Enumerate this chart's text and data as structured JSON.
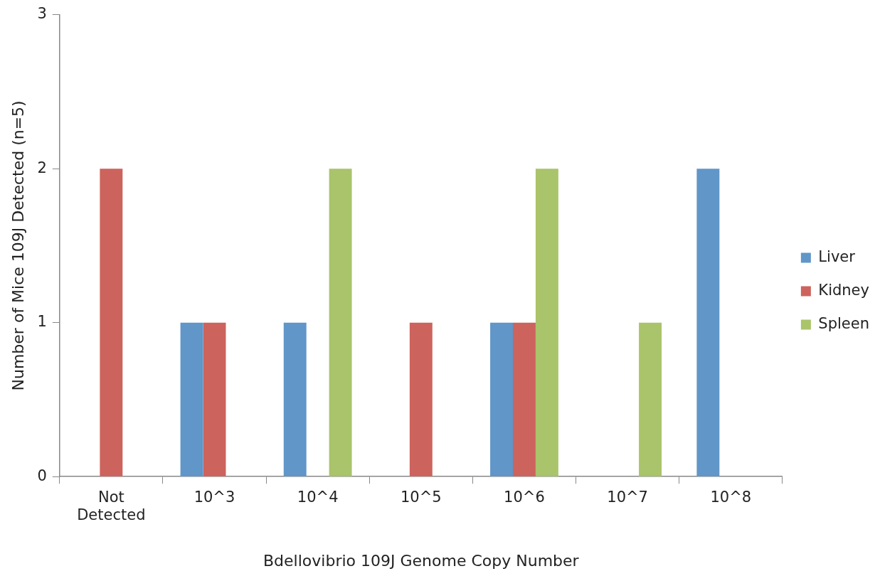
{
  "chart_data": {
    "type": "bar",
    "xlabel": "Bdellovibrio 109J Genome Copy Number",
    "ylabel": "Number of Mice 109J Detected (n=5)",
    "categories": [
      "Not Detected",
      "10^3",
      "10^4",
      "10^5",
      "10^6",
      "10^7",
      "10^8"
    ],
    "series": [
      {
        "name": "Liver",
        "color": "#6096c8",
        "values": [
          0,
          1,
          1,
          0,
          1,
          0,
          2
        ]
      },
      {
        "name": "Kidney",
        "color": "#cc635c",
        "values": [
          2,
          1,
          0,
          1,
          1,
          0,
          0
        ]
      },
      {
        "name": "Spleen",
        "color": "#a9c46a",
        "values": [
          0,
          0,
          2,
          0,
          2,
          1,
          0
        ]
      }
    ],
    "ylim": [
      0,
      3
    ],
    "yticks": [
      0,
      1,
      2,
      3
    ],
    "grid": false,
    "legend": "right"
  }
}
